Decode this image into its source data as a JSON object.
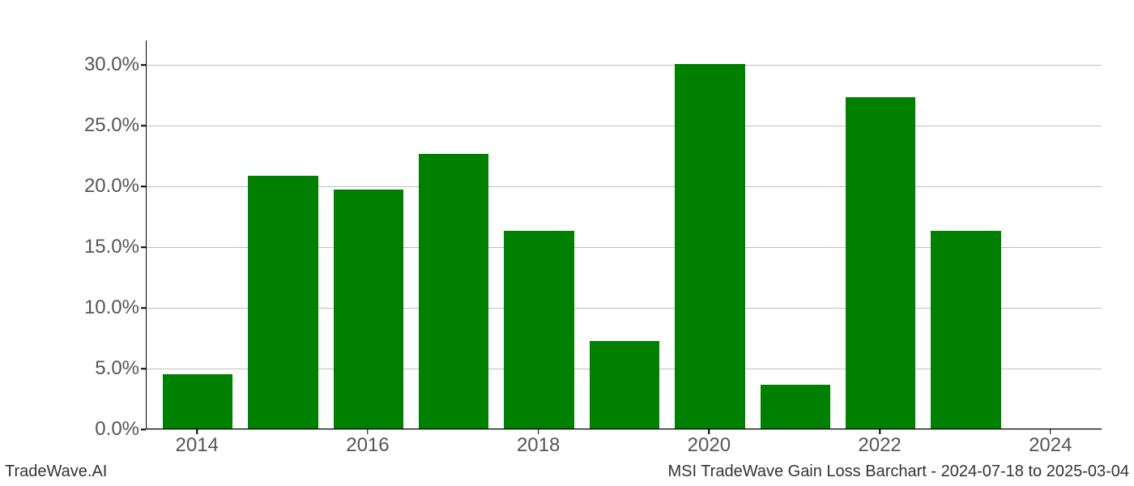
{
  "chart": {
    "type": "bar",
    "years": [
      2014,
      2015,
      2016,
      2017,
      2018,
      2019,
      2020,
      2021,
      2022,
      2023,
      2024
    ],
    "values": [
      4.5,
      20.8,
      19.7,
      22.6,
      16.3,
      7.2,
      30.0,
      3.6,
      27.3,
      16.3,
      0.0
    ],
    "bar_color": "#008000",
    "background_color": "#ffffff",
    "grid_color": "#bfbfbf",
    "axis_color": "#000000",
    "tick_label_color": "#555555",
    "yticks": [
      0.0,
      5.0,
      10.0,
      15.0,
      20.0,
      25.0,
      30.0
    ],
    "ytick_labels": [
      "0.0%",
      "5.0%",
      "10.0%",
      "15.0%",
      "20.0%",
      "25.0%",
      "30.0%"
    ],
    "xticks": [
      2014,
      2016,
      2018,
      2020,
      2022,
      2024
    ],
    "xtick_labels": [
      "2014",
      "2016",
      "2018",
      "2020",
      "2022",
      "2024"
    ],
    "ylim": [
      0,
      32
    ],
    "xlim": [
      2013.4,
      2024.6
    ],
    "bar_width": 0.82,
    "tick_fontsize": 24,
    "footer_fontsize": 20
  },
  "footer": {
    "left": "TradeWave.AI",
    "right": "MSI TradeWave Gain Loss Barchart - 2024-07-18 to 2025-03-04"
  }
}
